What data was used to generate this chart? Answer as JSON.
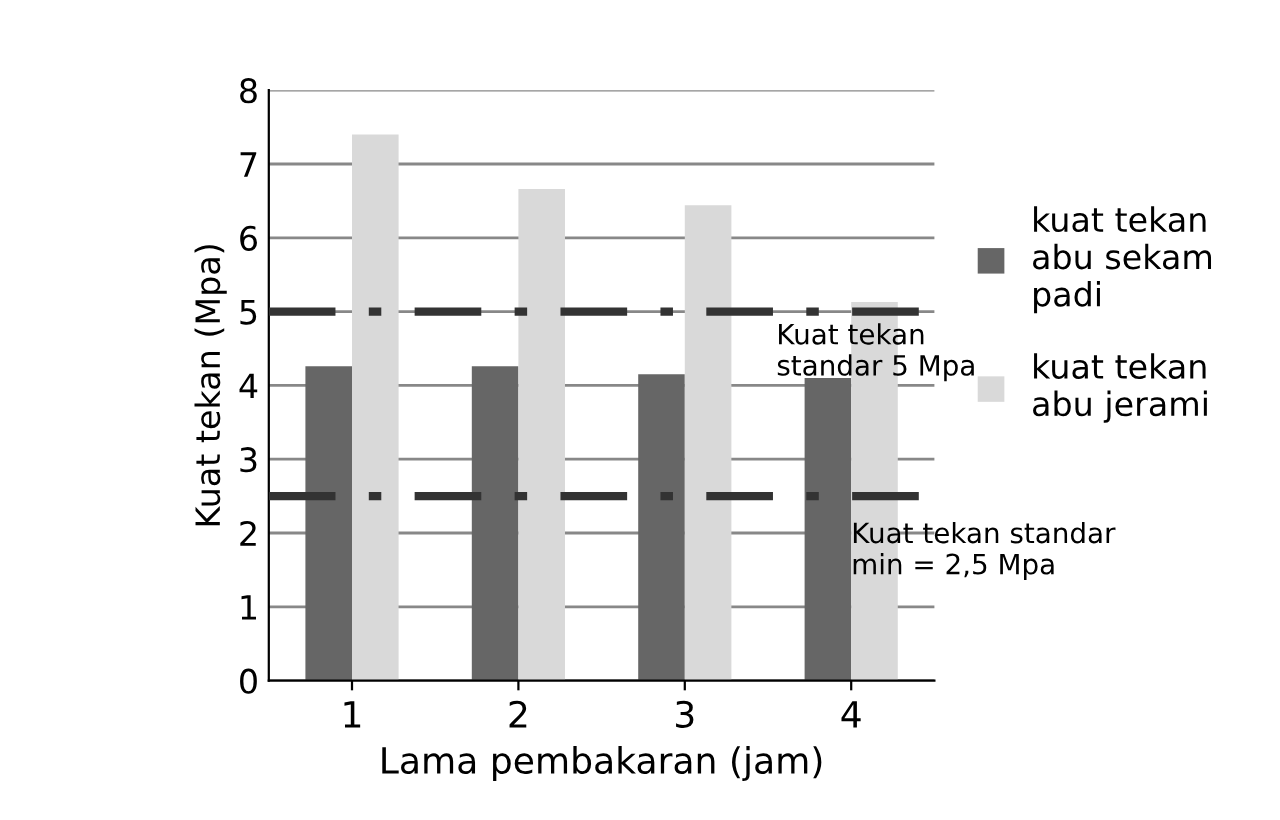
{
  "chart_data": {
    "type": "bar",
    "xlabel": "Lama pembakaran (jam)",
    "ylabel": "Kuat tekan (Mpa)",
    "categories": [
      "1",
      "2",
      "3",
      "4"
    ],
    "series": [
      {
        "name": "kuat tekan\nabu sekam\npadi",
        "color": "#666666",
        "values": [
          4.26,
          4.26,
          4.15,
          4.1
        ]
      },
      {
        "name": "kuat tekan\nabu jerami",
        "color": "#d9d9d9",
        "values": [
          7.4,
          6.66,
          6.44,
          5.13
        ]
      }
    ],
    "ylim": [
      0,
      8
    ],
    "yticks": [
      0,
      1,
      2,
      3,
      4,
      5,
      6,
      7,
      8
    ],
    "grid": "y",
    "legend": "right",
    "ref_lines": [
      {
        "axis": "y",
        "value": 5,
        "label": "Kuat tekan\nstandar 5 Mpa",
        "color": "#333333",
        "line_style": "dashdot"
      },
      {
        "axis": "y",
        "value": 2.5,
        "label": "Kuat tekan standar\nmin = 2,5 Mpa",
        "color": "#333333",
        "line_style": "dashdot"
      }
    ]
  }
}
